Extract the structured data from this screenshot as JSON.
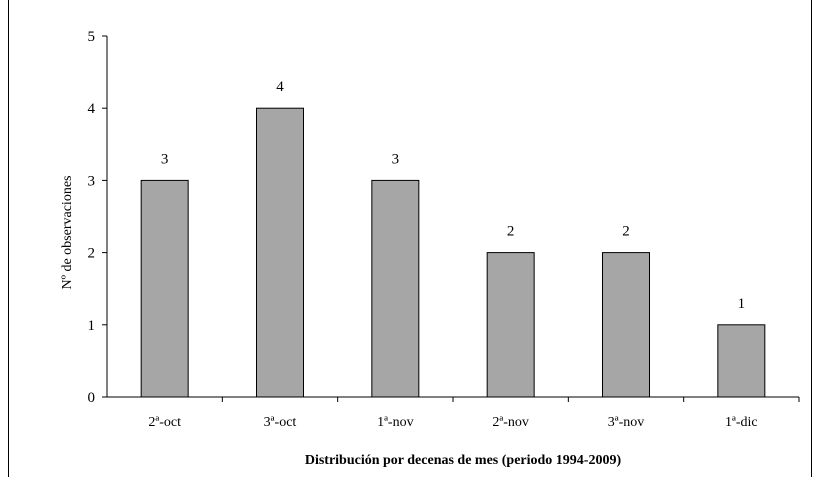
{
  "chart_data": {
    "type": "bar",
    "title": "",
    "xlabel": "Distribución por decenas de mes (periodo 1994-2009)",
    "ylabel": "Nº de observaciones",
    "categories": [
      "2ª-oct",
      "3ª-oct",
      "1ª-nov",
      "2ª-nov",
      "3ª-nov",
      "1ª-dic"
    ],
    "values": [
      3,
      4,
      3,
      2,
      2,
      1
    ],
    "data_labels": [
      "3",
      "4",
      "3",
      "2",
      "2",
      "1"
    ],
    "ylim": [
      0,
      5
    ],
    "yticks": [
      "0",
      "1",
      "2",
      "3",
      "4",
      "5"
    ],
    "bar_color": "#a6a6a6",
    "bar_stroke": "#000000",
    "grid": false,
    "legend": "none"
  }
}
